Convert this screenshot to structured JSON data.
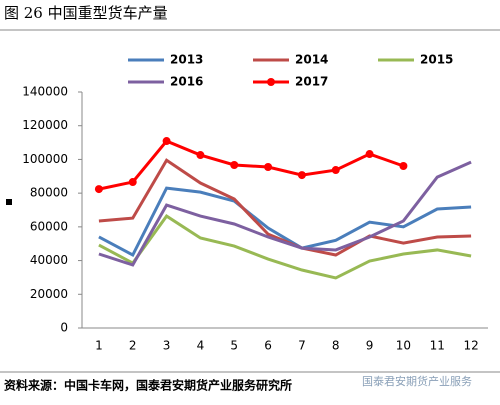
{
  "chart_data": {
    "type": "line",
    "title": "图 26 中国重型货车产量",
    "source": "资料来源：中国卡车网，国泰君安期货产业服务研究所",
    "watermark": "国泰君安期货产业服务",
    "categories": [
      "1",
      "2",
      "3",
      "4",
      "5",
      "6",
      "7",
      "8",
      "9",
      "10",
      "11",
      "12"
    ],
    "series": [
      {
        "name": "2013",
        "color": "#4a7ebb",
        "values": [
          54000,
          43300,
          83000,
          80600,
          75300,
          59300,
          47400,
          52000,
          62800,
          60000,
          70600,
          71800
        ]
      },
      {
        "name": "2014",
        "color": "#be4b48",
        "values": [
          63500,
          65200,
          99500,
          86000,
          76500,
          55700,
          47400,
          43300,
          54600,
          50400,
          54000,
          54600
        ]
      },
      {
        "name": "2015",
        "color": "#98b954",
        "values": [
          49200,
          38500,
          66400,
          53400,
          48600,
          40900,
          34400,
          29700,
          39700,
          43900,
          46300,
          42700
        ]
      },
      {
        "name": "2016",
        "color": "#7d60a0",
        "values": [
          43900,
          37400,
          72900,
          66400,
          61700,
          54000,
          47400,
          46300,
          54000,
          63500,
          89500,
          98400
        ]
      },
      {
        "name": "2017",
        "color": "#ff0000",
        "markers": true,
        "values": [
          82400,
          86600,
          110900,
          102600,
          96700,
          95500,
          90700,
          93700,
          103200,
          96100,
          null,
          null
        ]
      }
    ],
    "ylim": [
      0,
      140000
    ],
    "yticks": [
      0,
      20000,
      40000,
      60000,
      80000,
      100000,
      120000,
      140000
    ],
    "grid": false
  }
}
